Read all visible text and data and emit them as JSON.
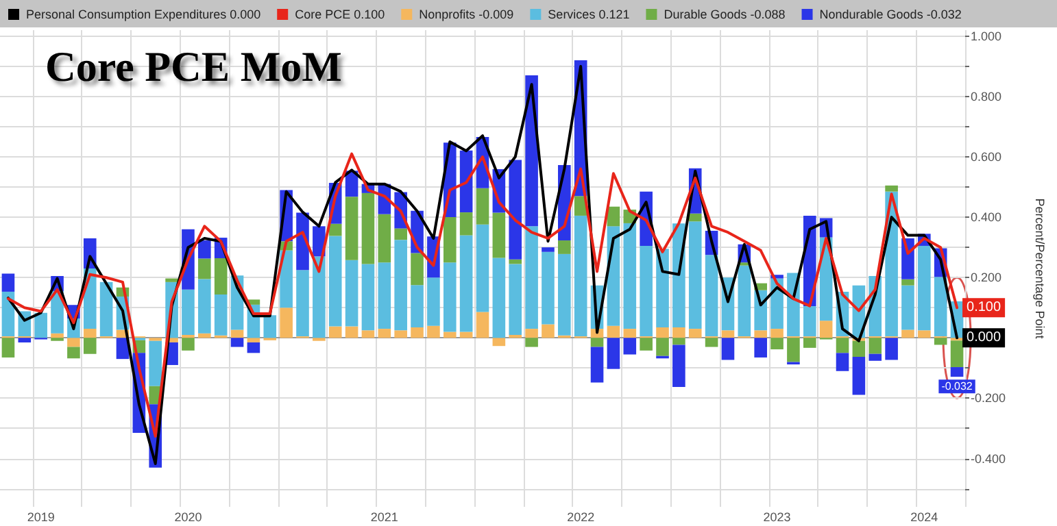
{
  "chart_data": {
    "type": "bar",
    "title": "Core PCE MoM",
    "ylabel": "Percent/Percentage Point",
    "stacked": true,
    "legend": "top",
    "grid": true,
    "marker": "none",
    "line_style": "solid",
    "categories": [
      null,
      null,
      "2019",
      null,
      null,
      null,
      null,
      null,
      null,
      null,
      null,
      "2020",
      null,
      null,
      null,
      null,
      null,
      null,
      null,
      null,
      null,
      null,
      null,
      "2021",
      null,
      null,
      null,
      null,
      null,
      null,
      null,
      null,
      null,
      null,
      null,
      "2022",
      null,
      null,
      null,
      null,
      null,
      null,
      null,
      null,
      null,
      null,
      null,
      "2023",
      null,
      null,
      null,
      null,
      null,
      null,
      null,
      null,
      "2024",
      null,
      null
    ],
    "ylim": [
      -0.56,
      1.02
    ],
    "yticks": [
      {
        "value": -0.5,
        "label": null
      },
      {
        "value": -0.4,
        "label": "-0.400"
      },
      {
        "value": -0.3,
        "label": null
      },
      {
        "value": -0.2,
        "label": "-0.200"
      },
      {
        "value": -0.1,
        "label": null
      },
      {
        "value": 0,
        "label": null
      },
      {
        "value": 0.1,
        "label": null
      },
      {
        "value": 0.2,
        "label": "0.200"
      },
      {
        "value": 0.3,
        "label": null
      },
      {
        "value": 0.4,
        "label": "0.400"
      },
      {
        "value": 0.5,
        "label": null
      },
      {
        "value": 0.6,
        "label": "0.600"
      },
      {
        "value": 0.7,
        "label": null
      },
      {
        "value": 0.8,
        "label": "0.800"
      },
      {
        "value": 0.9,
        "label": null
      },
      {
        "value": 1,
        "label": "1.000"
      }
    ],
    "series": [
      {
        "name": "Personal Consumption Expenditures 0.000",
        "type": "line",
        "color": "#000000",
        "values": [
          0.132,
          0.058,
          0.083,
          0.197,
          0.03,
          0.27,
          0.18,
          0.09,
          -0.22,
          -0.417,
          0.106,
          0.3,
          0.33,
          0.32,
          0.167,
          0.073,
          0.073,
          0.485,
          0.417,
          0.37,
          0.515,
          0.556,
          0.51,
          0.51,
          0.485,
          0.42,
          0.33,
          0.65,
          0.62,
          0.67,
          0.53,
          0.6,
          0.84,
          0.32,
          0.56,
          0.9,
          0.018,
          0.33,
          0.36,
          0.45,
          0.22,
          0.21,
          0.553,
          0.32,
          0.12,
          0.31,
          0.109,
          0.167,
          0.13,
          0.36,
          0.386,
          0.03,
          -0.01,
          0.144,
          0.4,
          0.34,
          0.34,
          0.26,
          0
        ],
        "value_labels": [
          null,
          null,
          null,
          null,
          null,
          null,
          null,
          null,
          null,
          null,
          null,
          null,
          null,
          null,
          null,
          null,
          null,
          null,
          null,
          null,
          null,
          null,
          null,
          null,
          null,
          null,
          null,
          null,
          null,
          null,
          null,
          null,
          null,
          null,
          null,
          null,
          null,
          null,
          null,
          null,
          null,
          null,
          null,
          null,
          null,
          null,
          null,
          null,
          null,
          null,
          null,
          null,
          null,
          null,
          null,
          null,
          null,
          null,
          "0.000"
        ]
      },
      {
        "name": "Core PCE 0.100",
        "type": "line",
        "color": "#e8251a",
        "values": [
          0.13,
          0.1,
          0.088,
          0.16,
          0.05,
          0.21,
          0.2,
          0.185,
          -0.1,
          -0.326,
          0.12,
          0.26,
          0.37,
          0.32,
          0.19,
          0.08,
          0.08,
          0.32,
          0.35,
          0.22,
          0.47,
          0.61,
          0.49,
          0.47,
          0.42,
          0.3,
          0.24,
          0.49,
          0.515,
          0.6,
          0.45,
          0.39,
          0.35,
          0.33,
          0.37,
          0.56,
          0.22,
          0.545,
          0.42,
          0.39,
          0.285,
          0.38,
          0.53,
          0.37,
          0.35,
          0.32,
          0.29,
          0.18,
          0.13,
          0.106,
          0.33,
          0.144,
          0.09,
          0.16,
          0.477,
          0.28,
          0.33,
          0.3,
          0.1
        ],
        "value_labels": [
          null,
          null,
          null,
          null,
          null,
          null,
          null,
          null,
          null,
          null,
          null,
          null,
          null,
          null,
          null,
          null,
          null,
          null,
          null,
          null,
          null,
          null,
          null,
          null,
          null,
          null,
          null,
          null,
          null,
          null,
          null,
          null,
          null,
          null,
          null,
          null,
          null,
          null,
          null,
          null,
          null,
          null,
          null,
          null,
          null,
          null,
          null,
          null,
          null,
          null,
          null,
          null,
          null,
          null,
          null,
          null,
          null,
          null,
          "0.100"
        ]
      },
      {
        "name": "Nonprofits -0.009",
        "color": "#f5b75e",
        "values": [
          0.005,
          0.005,
          0,
          0.015,
          -0.03,
          0.03,
          0.005,
          0.027,
          0.005,
          -0.01,
          -0.015,
          0.01,
          0.015,
          0.008,
          0.027,
          -0.015,
          -0.008,
          0.1,
          0.005,
          -0.01,
          0.038,
          0.038,
          0.025,
          0.03,
          0.025,
          0.035,
          0.04,
          0.02,
          0.02,
          0.086,
          -0.027,
          0.01,
          0.03,
          0.045,
          0.008,
          0.005,
          0.03,
          0.04,
          0.03,
          0.005,
          0.035,
          0.035,
          0.03,
          0.005,
          0.025,
          0.005,
          0.025,
          0.03,
          0.005,
          0.005,
          0.057,
          0.005,
          -0.01,
          0.005,
          0.005,
          0.027,
          0.025,
          0.005,
          -0.009
        ]
      },
      {
        "name": "Services 0.121",
        "color": "#5bbde0",
        "values": [
          0.148,
          0.083,
          0.083,
          0.14,
          0.064,
          0.2,
          0.18,
          0.11,
          -0.008,
          -0.15,
          0.185,
          0.15,
          0.18,
          0.136,
          0.18,
          0.11,
          0.075,
          0.19,
          0.22,
          0.27,
          0.3,
          0.22,
          0.22,
          0.22,
          0.3,
          0.14,
          0.16,
          0.23,
          0.32,
          0.29,
          0.265,
          0.235,
          0.34,
          0.24,
          0.27,
          0.4,
          0.144,
          0.33,
          0.35,
          0.3,
          0.26,
          0.344,
          0.356,
          0.27,
          0.175,
          0.235,
          0.133,
          0.167,
          0.21,
          0.1,
          0.276,
          0.148,
          0.174,
          0.2,
          0.48,
          0.147,
          0.28,
          0.197,
          0.121
        ]
      },
      {
        "name": "Durable Goods -0.088",
        "color": "#70ad47",
        "values": [
          -0.065,
          0,
          0,
          -0.01,
          -0.038,
          -0.053,
          0,
          0.03,
          -0.042,
          -0.06,
          0.012,
          -0.042,
          0.068,
          0.12,
          0,
          0.017,
          0,
          0.03,
          0,
          0,
          0.04,
          0.21,
          0.235,
          0.16,
          0.038,
          0.106,
          0,
          0.15,
          0.076,
          0.12,
          0.15,
          0.015,
          -0.03,
          0,
          0.045,
          0.065,
          -0.03,
          0.065,
          0.045,
          -0.042,
          -0.06,
          -0.023,
          0.026,
          -0.03,
          0,
          0.01,
          0.023,
          -0.038,
          -0.08,
          -0.033,
          -0.005,
          -0.05,
          -0.053,
          -0.053,
          0.02,
          0.02,
          0,
          -0.023,
          -0.088
        ]
      },
      {
        "name": "Nondurable Goods -0.032",
        "color": "#2b36e8",
        "values": [
          0.06,
          -0.015,
          -0.005,
          0.05,
          0.045,
          0.1,
          0,
          -0.07,
          -0.265,
          -0.21,
          -0.075,
          0.2,
          0.06,
          0.068,
          -0.03,
          -0.035,
          0,
          0.17,
          0.19,
          0.1,
          0.136,
          0.086,
          0.03,
          0.1,
          0.12,
          0.14,
          0.136,
          0.247,
          0.205,
          0.17,
          0.144,
          0.33,
          0.5,
          0.015,
          0.25,
          0.45,
          -0.118,
          -0.103,
          -0.055,
          0.18,
          -0.008,
          -0.14,
          0.15,
          0.08,
          -0.073,
          0.06,
          -0.065,
          0.012,
          -0.008,
          0.3,
          0.064,
          -0.06,
          -0.126,
          -0.023,
          -0.073,
          0.136,
          0.04,
          0.095,
          -0.032
        ],
        "value_labels": [
          null,
          null,
          null,
          null,
          null,
          null,
          null,
          null,
          null,
          null,
          null,
          null,
          null,
          null,
          null,
          null,
          null,
          null,
          null,
          null,
          null,
          null,
          null,
          null,
          null,
          null,
          null,
          null,
          null,
          null,
          null,
          null,
          null,
          null,
          null,
          null,
          null,
          null,
          null,
          null,
          null,
          null,
          null,
          null,
          null,
          null,
          null,
          null,
          null,
          null,
          null,
          null,
          null,
          null,
          null,
          null,
          null,
          null,
          "-0.032"
        ]
      }
    ]
  }
}
